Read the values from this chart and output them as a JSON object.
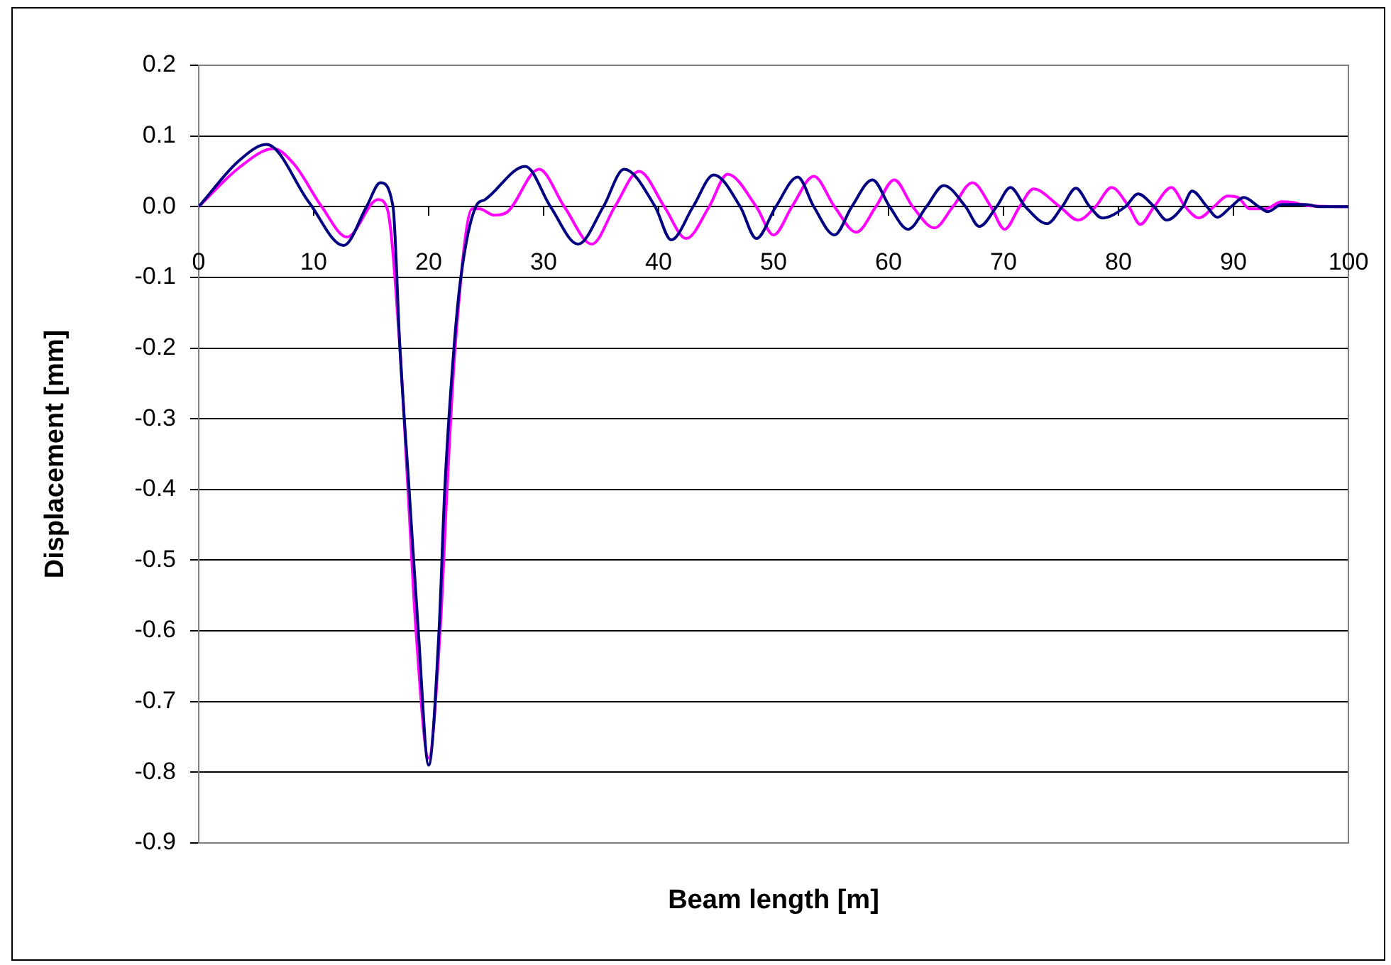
{
  "chart_data": {
    "type": "line",
    "xlabel": "Beam length [m]",
    "ylabel": "Displacement [mm]",
    "xlim": [
      0,
      100
    ],
    "xticks": [
      0,
      10,
      20,
      30,
      40,
      50,
      60,
      70,
      80,
      90,
      100
    ],
    "ylim": [
      -0.9,
      0.2
    ],
    "yticks": [
      {
        "value": 0.2,
        "label": "0.2"
      },
      {
        "value": 0.1,
        "label": "0.1"
      },
      {
        "value": 0,
        "label": "0.0"
      },
      {
        "value": -0.1,
        "label": "-0.1"
      },
      {
        "value": -0.2,
        "label": "-0.2"
      },
      {
        "value": -0.3,
        "label": "-0.3"
      },
      {
        "value": -0.4,
        "label": "-0.4"
      },
      {
        "value": -0.5,
        "label": "-0.5"
      },
      {
        "value": -0.6,
        "label": "-0.6"
      },
      {
        "value": -0.7,
        "label": "-0.7"
      },
      {
        "value": -0.8,
        "label": "-0.8"
      },
      {
        "value": -0.9,
        "label": "-0.9"
      }
    ],
    "grid": "y",
    "legend": false,
    "marker": "none",
    "line_style": "solid",
    "series": [
      {
        "color": "#000080",
        "x": [
          0,
          3.5,
          5.9,
          9.6,
          12.6,
          14.6,
          15.8,
          16.9,
          17.5,
          18.3,
          19.1,
          20.0,
          20.9,
          21.4,
          22.2,
          22.8,
          24.1,
          24.9,
          28.4,
          30.6,
          33.0,
          35.2,
          37.0,
          39.7,
          41.1,
          43.0,
          44.8,
          47.1,
          48.5,
          50.2,
          52.1,
          53.5,
          55.3,
          56.8,
          58.6,
          60.1,
          61.7,
          63.3,
          64.8,
          66.7,
          67.9,
          69.4,
          70.6,
          71.9,
          73.8,
          75.1,
          76.3,
          77.5,
          78.6,
          80.6,
          81.7,
          83.1,
          84.2,
          85.6,
          86.4,
          87.7,
          88.6,
          89.8,
          90.9,
          92.2,
          93.0,
          94.2,
          96.3,
          97.5,
          100
        ],
        "values": [
          0,
          0.065,
          0.088,
          0.006,
          -0.055,
          0,
          0.034,
          0,
          -0.2,
          -0.4,
          -0.6,
          -0.79,
          -0.6,
          -0.4,
          -0.2,
          -0.1,
          0,
          0.01,
          0.057,
          0,
          -0.053,
          0,
          0.053,
          0,
          -0.047,
          0,
          0.045,
          0,
          -0.045,
          0,
          0.042,
          0,
          -0.04,
          0,
          0.038,
          0,
          -0.032,
          0,
          0.03,
          0,
          -0.028,
          0,
          0.027,
          0,
          -0.024,
          0,
          0.026,
          0,
          -0.016,
          0,
          0.018,
          0,
          -0.019,
          0,
          0.022,
          0,
          -0.015,
          0,
          0.013,
          0,
          -0.007,
          0.003,
          0.003,
          0,
          0
        ]
      },
      {
        "color": "#ff00ff",
        "x": [
          0,
          3.5,
          6.5,
          8.3,
          10.7,
          12.9,
          15.6,
          16.4,
          17.5,
          18.2,
          18.9,
          20.0,
          21.0,
          21.6,
          22.3,
          23.8,
          24.4,
          25.7,
          26.8,
          29.6,
          31.8,
          34.2,
          36.2,
          38.3,
          40.5,
          42.4,
          44.4,
          46.0,
          48.5,
          50.0,
          51.6,
          53.5,
          55.3,
          57.2,
          58.9,
          60.5,
          62.1,
          64.0,
          65.6,
          67.3,
          68.9,
          70.1,
          71.4,
          72.6,
          74.9,
          76.5,
          78.0,
          79.4,
          80.9,
          81.9,
          83.1,
          84.6,
          85.8,
          87.0,
          88.3,
          89.5,
          90.4,
          91.4,
          92.8,
          94.2,
          95.1,
          96.7,
          100
        ],
        "values": [
          0,
          0.055,
          0.082,
          0.06,
          0,
          -0.043,
          0.01,
          -0.003,
          -0.2,
          -0.4,
          -0.6,
          -0.78,
          -0.6,
          -0.4,
          -0.2,
          -0.003,
          -0.003,
          -0.012,
          -0.008,
          0.053,
          0,
          -0.053,
          0,
          0.05,
          0,
          -0.045,
          0,
          0.046,
          0,
          -0.04,
          0,
          0.043,
          0,
          -0.036,
          0,
          0.038,
          0,
          -0.03,
          0,
          0.034,
          0,
          -0.032,
          0,
          0.025,
          0,
          -0.019,
          0,
          0.027,
          0,
          -0.025,
          0,
          0.027,
          0,
          -0.016,
          0,
          0.015,
          0.013,
          -0.003,
          -0.003,
          0.007,
          0.006,
          0.001,
          0
        ]
      }
    ]
  }
}
